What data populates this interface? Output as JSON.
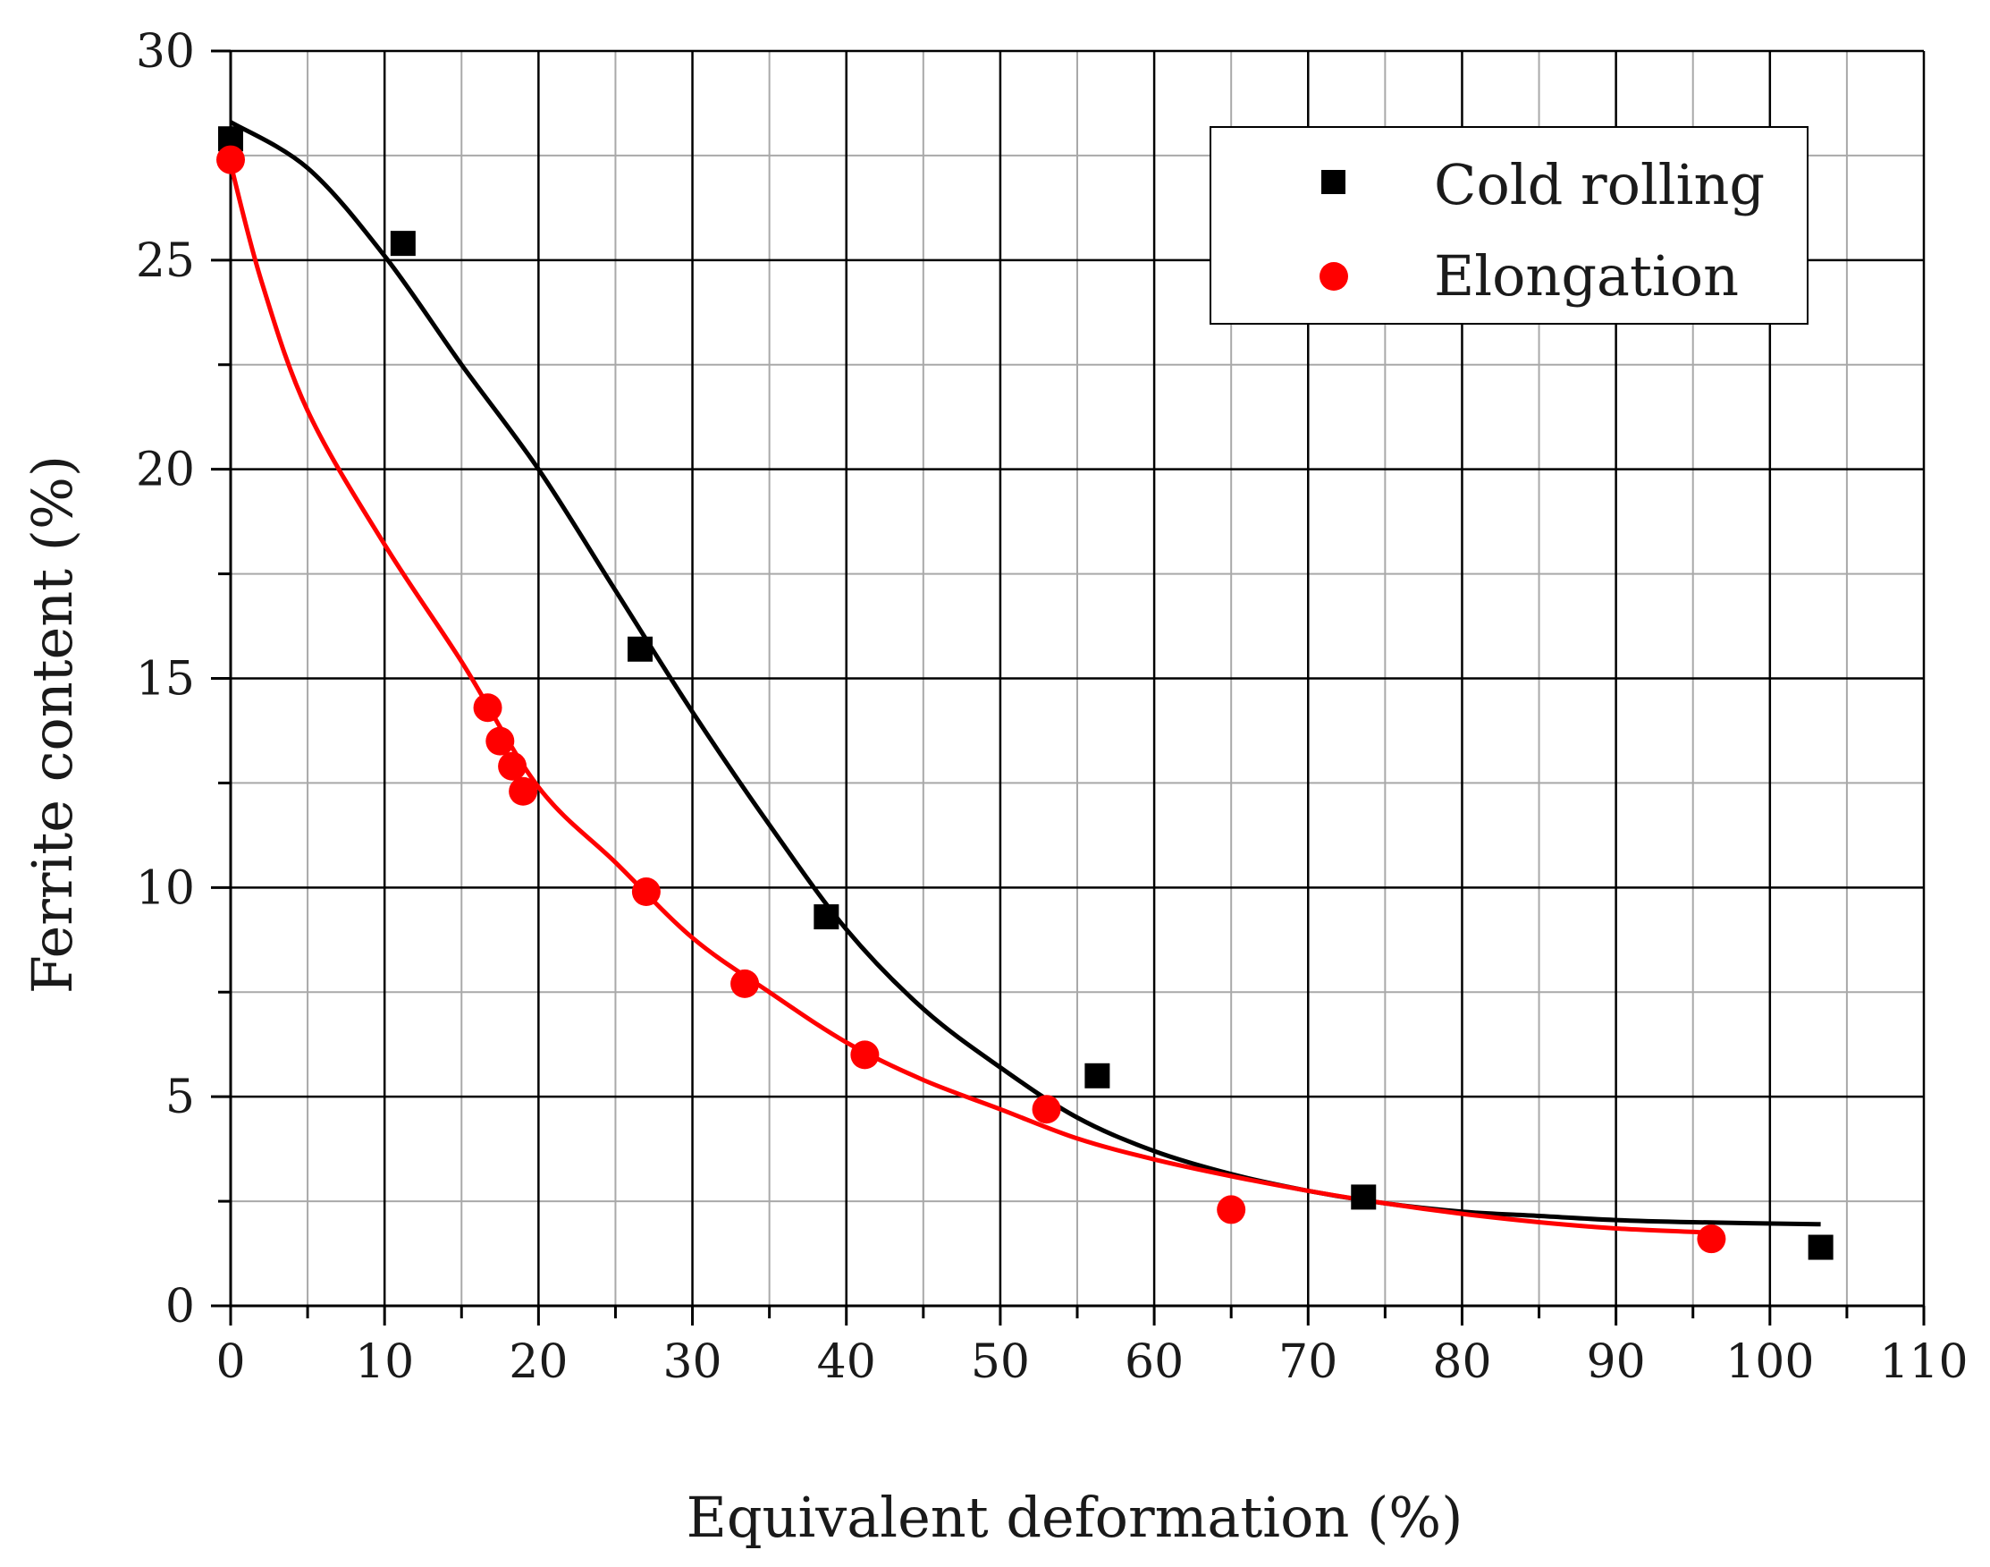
{
  "chart_data": {
    "type": "scatter",
    "xlabel": "Equivalent deformation (%)",
    "ylabel": "Ferrite content (%)",
    "xlim": [
      0,
      110
    ],
    "ylim": [
      0,
      30
    ],
    "x_ticks": [
      0,
      10,
      20,
      30,
      40,
      50,
      60,
      70,
      80,
      90,
      100,
      110
    ],
    "y_ticks": [
      0,
      5,
      10,
      15,
      20,
      25,
      30
    ],
    "x_tick_labels": [
      "0",
      "10",
      "20",
      "30",
      "40",
      "50",
      "60",
      "70",
      "80",
      "90",
      "100",
      "110"
    ],
    "y_tick_labels": [
      "0",
      "5",
      "10",
      "15",
      "20",
      "25",
      "30"
    ],
    "grid": true,
    "legend_position": "top-right",
    "series": [
      {
        "name": "Cold rolling",
        "marker": "square",
        "color": "#000000",
        "points": [
          [
            0,
            27.9
          ],
          [
            11.2,
            25.4
          ],
          [
            26.6,
            15.7
          ],
          [
            38.7,
            9.3
          ],
          [
            56.3,
            5.5
          ],
          [
            73.6,
            2.6
          ],
          [
            103.3,
            1.4
          ]
        ],
        "fit": [
          [
            0,
            28.3
          ],
          [
            5,
            27.2
          ],
          [
            10,
            25.1
          ],
          [
            15,
            22.5
          ],
          [
            20,
            20.0
          ],
          [
            25,
            17.1
          ],
          [
            30,
            14.2
          ],
          [
            35,
            11.5
          ],
          [
            40,
            9.0
          ],
          [
            45,
            7.1
          ],
          [
            50,
            5.7
          ],
          [
            55,
            4.5
          ],
          [
            60,
            3.7
          ],
          [
            65,
            3.15
          ],
          [
            70,
            2.75
          ],
          [
            75,
            2.45
          ],
          [
            80,
            2.25
          ],
          [
            85,
            2.15
          ],
          [
            90,
            2.05
          ],
          [
            95,
            2.0
          ],
          [
            103.3,
            1.95
          ]
        ]
      },
      {
        "name": "Elongation",
        "marker": "circle",
        "color": "#ff0000",
        "points": [
          [
            0,
            27.4
          ],
          [
            16.7,
            14.3
          ],
          [
            17.5,
            13.5
          ],
          [
            18.3,
            12.9
          ],
          [
            19.0,
            12.3
          ],
          [
            27.0,
            9.9
          ],
          [
            33.4,
            7.7
          ],
          [
            41.2,
            6.0
          ],
          [
            53.0,
            4.7
          ],
          [
            65.0,
            2.3
          ],
          [
            96.2,
            1.6
          ]
        ],
        "fit": [
          [
            0,
            27.3
          ],
          [
            2,
            24.5
          ],
          [
            5,
            21.4
          ],
          [
            10,
            18.2
          ],
          [
            15,
            15.4
          ],
          [
            20,
            12.4
          ],
          [
            25,
            10.6
          ],
          [
            30,
            8.8
          ],
          [
            35,
            7.5
          ],
          [
            40,
            6.3
          ],
          [
            45,
            5.4
          ],
          [
            50,
            4.7
          ],
          [
            55,
            4.0
          ],
          [
            60,
            3.5
          ],
          [
            65,
            3.1
          ],
          [
            70,
            2.75
          ],
          [
            75,
            2.45
          ],
          [
            80,
            2.2
          ],
          [
            85,
            2.0
          ],
          [
            90,
            1.85
          ],
          [
            96.2,
            1.75
          ]
        ]
      }
    ]
  }
}
